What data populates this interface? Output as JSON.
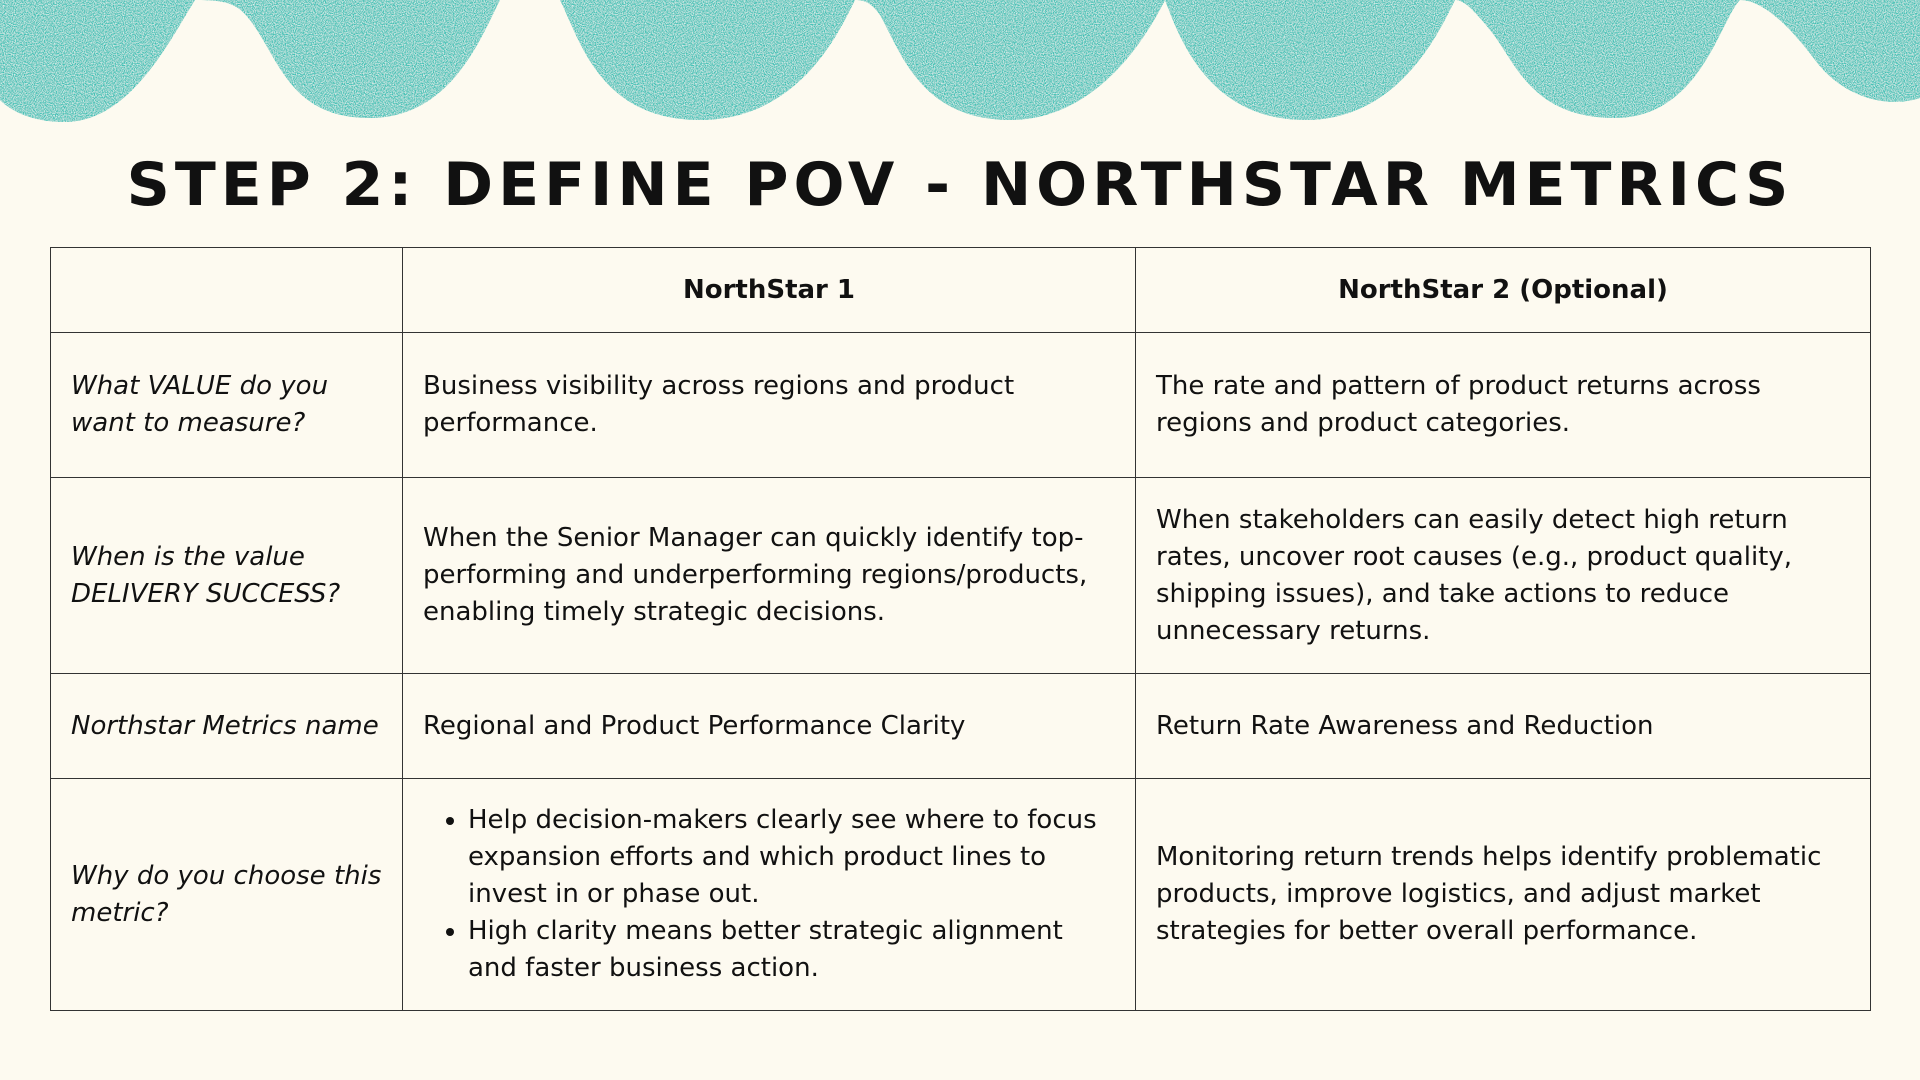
{
  "title": "STEP 2: DEFINE POV - NORTHSTAR METRICS",
  "colors": {
    "background": "#fdfaf0",
    "wave": "#3cc1b5",
    "text": "#111111",
    "border": "#333333"
  },
  "table": {
    "headers": [
      "",
      "NorthStar 1",
      "NorthStar 2 (Optional)"
    ],
    "rows": [
      {
        "label": "What VALUE do you want to measure?",
        "ns1": "Business visibility across regions and product performance.",
        "ns2": "The rate and pattern of product returns across regions and product categories."
      },
      {
        "label": "When is the value DELIVERY SUCCESS?",
        "ns1": "When the Senior Manager can quickly identify top-performing and underperforming regions/products, enabling timely strategic decisions.",
        "ns2": "When stakeholders can easily detect high return rates, uncover root causes (e.g., product quality, shipping issues), and take actions to reduce unnecessary returns."
      },
      {
        "label": "Northstar Metrics name",
        "ns1": "Regional and Product Performance Clarity",
        "ns2": "Return Rate Awareness and Reduction"
      },
      {
        "label": "Why do you choose this metric?",
        "ns1_bullets": [
          "Help decision-makers clearly see where to focus expansion efforts and which product lines to invest in or phase out.",
          "High clarity means better strategic alignment and faster business action."
        ],
        "ns2": "Monitoring return trends helps identify problematic products, improve logistics, and adjust market strategies for better overall performance."
      }
    ]
  }
}
